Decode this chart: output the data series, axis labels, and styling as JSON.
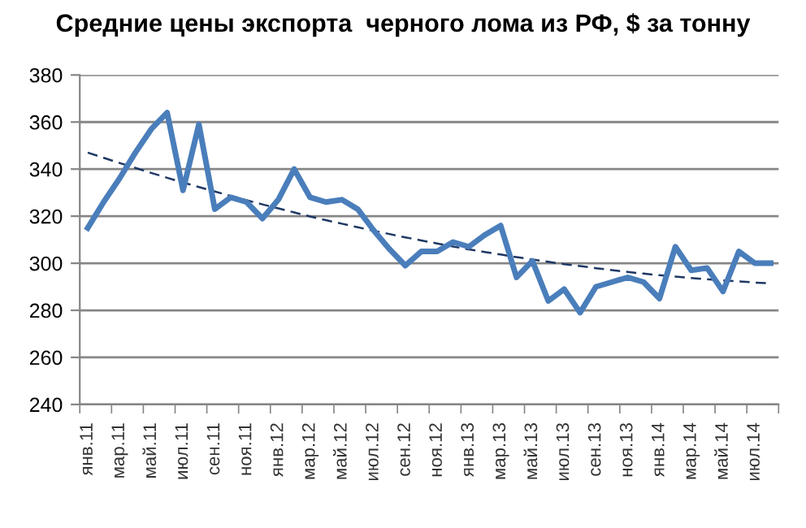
{
  "chart_data": {
    "type": "line",
    "title": "Средние цены экспорта  черного лома из РФ, $ за тонну",
    "categories": [
      "янв.11",
      null,
      "мар.11",
      null,
      "май.11",
      null,
      "июл.11",
      null,
      "сен.11",
      null,
      "ноя.11",
      null,
      "янв.12",
      null,
      "мар.12",
      null,
      "май.12",
      null,
      "июл.12",
      null,
      "сен.12",
      null,
      "ноя.12",
      null,
      "янв.13",
      null,
      "мар.13",
      null,
      "май.13",
      null,
      "июл.13",
      null,
      "сен.13",
      null,
      "ноя.13",
      null,
      "янв.14",
      null,
      "мар.14",
      null,
      "май.14",
      null,
      "июл.14",
      null
    ],
    "series": [
      {
        "color": "#4a7ebb",
        "line_style": "solid",
        "values": [
          315,
          326,
          336,
          347,
          357,
          364,
          331,
          359,
          323,
          328,
          326,
          319,
          327,
          340,
          328,
          326,
          327,
          323,
          314,
          306,
          299,
          305,
          305,
          309,
          307,
          312,
          316,
          294,
          301,
          284,
          289,
          279,
          290,
          292,
          294,
          292,
          285,
          307,
          297,
          298,
          288,
          305,
          300,
          300
        ]
      },
      {
        "color": "#1f3864",
        "line_style": "dashed",
        "values": [
          347.0,
          344.8,
          342.6,
          340.5,
          338.4,
          336.3,
          334.3,
          332.4,
          330.5,
          328.6,
          326.8,
          325.0,
          323.3,
          321.6,
          319.9,
          318.3,
          316.8,
          315.3,
          313.8,
          312.4,
          311.0,
          309.7,
          308.4,
          307.1,
          305.9,
          304.8,
          303.7,
          302.6,
          301.6,
          300.6,
          299.6,
          298.8,
          297.9,
          297.1,
          296.3,
          295.6,
          294.9,
          294.3,
          293.7,
          293.2,
          292.7,
          292.3,
          291.8,
          291.5
        ]
      }
    ],
    "ylim": [
      240,
      380
    ],
    "yticks": [
      240,
      260,
      280,
      300,
      320,
      340,
      360,
      380
    ],
    "grid": "y",
    "legend": false,
    "marker": "none"
  }
}
